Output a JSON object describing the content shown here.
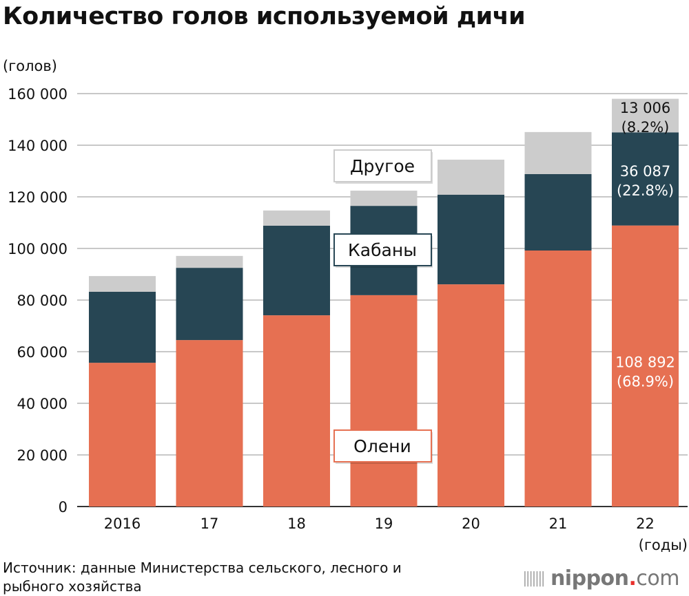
{
  "chart_data": {
    "type": "bar",
    "stacked": true,
    "title": "Количество голов используемой дичи",
    "ylabel": "(голов)",
    "xlabel": "(годы)",
    "ylim": [
      0,
      160000
    ],
    "yticks": [
      0,
      20000,
      40000,
      60000,
      80000,
      100000,
      120000,
      140000,
      160000
    ],
    "ytick_labels": [
      "0",
      "20 000",
      "40 000",
      "60 000",
      "80 000",
      "100 000",
      "120 000",
      "140 000",
      "160 000"
    ],
    "categories": [
      "2016",
      "17",
      "18",
      "19",
      "20",
      "21",
      "22"
    ],
    "grid": true,
    "series": [
      {
        "name": "Олени",
        "color": "#e67052",
        "values": [
          55700,
          64500,
          74100,
          81900,
          86100,
          99200,
          108892
        ]
      },
      {
        "name": "Кабаны",
        "color": "#274654",
        "values": [
          27500,
          28000,
          34700,
          34600,
          34700,
          29600,
          36087
        ]
      },
      {
        "name": "Другое",
        "color": "#cccccc",
        "values": [
          6100,
          4600,
          5900,
          5900,
          13600,
          16300,
          13006
        ]
      }
    ],
    "annotations": [
      {
        "series": "Олени",
        "category": "22",
        "line1": "108 892",
        "line2": "(68.9%)"
      },
      {
        "series": "Кабаны",
        "category": "22",
        "line1": "36 087",
        "line2": "(22.8%)"
      },
      {
        "series": "Другое",
        "category": "22",
        "line1": "13 006",
        "line2": "(8.2%)"
      }
    ]
  },
  "source": "Источник: данные Министерства сельского, лесного и рыбного хозяйства",
  "logo": {
    "name": "nippon",
    "dot": ".",
    "com": "com"
  }
}
